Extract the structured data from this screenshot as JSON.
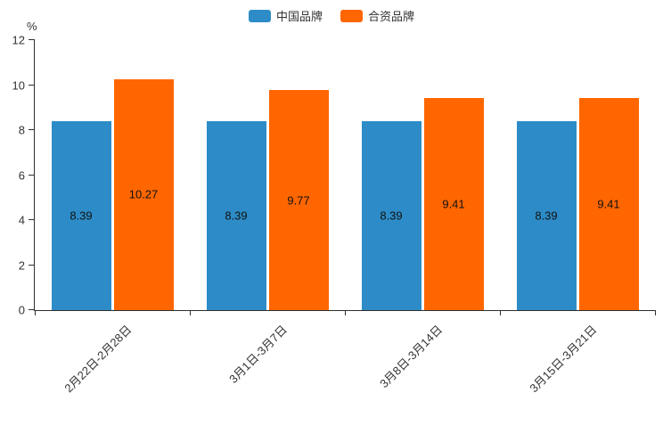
{
  "chart_data": {
    "type": "bar",
    "title": "",
    "categories": [
      "2月22日-2月28日",
      "3月1日-3月7日",
      "3月8日-3月14日",
      "3月15日-3月21日"
    ],
    "series": [
      {
        "name": "中国品牌",
        "color": "#2d8cc7",
        "values": [
          8.39,
          8.39,
          8.39,
          8.39
        ]
      },
      {
        "name": "合资品牌",
        "color": "#ff6600",
        "values": [
          10.27,
          9.77,
          9.41,
          9.41
        ]
      }
    ],
    "xlabel": "",
    "ylabel": "%",
    "ylim": [
      0,
      12
    ],
    "ytick_step": 2,
    "yticks": [
      0,
      2,
      4,
      6,
      8,
      10,
      12
    ],
    "grid": false,
    "legend_position": "top-center",
    "value_labels": "inside-middle",
    "x_label_rotation_deg": 45
  }
}
